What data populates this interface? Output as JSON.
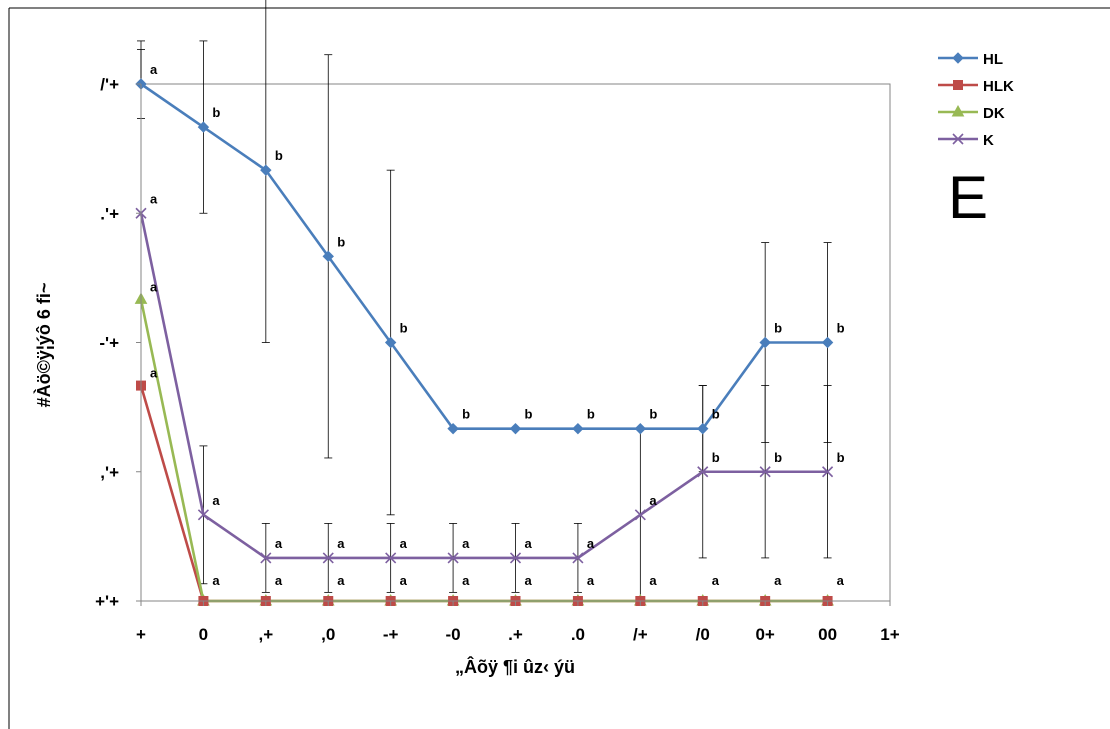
{
  "panel_letter": "E",
  "chart_data": {
    "type": "line",
    "xlabel": "„Âõÿ ¶i ûz‹ ýü",
    "ylabel": "#Àö©ÿ¦ýô 6 fi~",
    "x": [
      0,
      5,
      10,
      15,
      20,
      25,
      30,
      35,
      40,
      45,
      50,
      55
    ],
    "x_tick_labels": [
      "+",
      "0",
      ",+",
      ",0",
      "-+",
      "-0",
      ".+",
      ".0",
      "/+",
      "/0",
      "0+",
      "00",
      "1+"
    ],
    "y_tick_labels": [
      "+'+",
      ",'+",
      "-'+",
      ".'+",
      "/'+"
    ],
    "xlim": [
      0,
      60
    ],
    "ylim": [
      0,
      3
    ],
    "grid": false,
    "legend": "top-right",
    "series": [
      {
        "name": "HL",
        "color": "#4a7ebb",
        "marker": "diamond",
        "values": [
          3.0,
          2.75,
          2.5,
          2.0,
          1.5,
          1.0,
          1.0,
          1.0,
          1.0,
          1.0,
          1.5,
          1.5
        ],
        "errors": [
          0.2,
          0.5,
          1.0,
          1.17,
          1.0,
          0,
          0,
          0,
          0,
          0.25,
          0.58,
          0.58
        ],
        "labels": [
          "a",
          "b",
          "b",
          "b",
          "b",
          "b",
          "b",
          "b",
          "b",
          "b",
          "b",
          "b"
        ]
      },
      {
        "name": "HLK",
        "color": "#be4b48",
        "marker": "square",
        "values": [
          1.25,
          0,
          0,
          0,
          0,
          0,
          0,
          0,
          0,
          0,
          0,
          0
        ],
        "errors": [
          0,
          0,
          0,
          0,
          0,
          0,
          0,
          0,
          0,
          0,
          0,
          0
        ],
        "labels": [
          "a",
          "a",
          "a",
          "a",
          "a",
          "a",
          "a",
          "a",
          "a",
          "a",
          "a",
          "a"
        ]
      },
      {
        "name": "DK",
        "color": "#98b954",
        "marker": "triangle",
        "values": [
          1.75,
          0,
          0,
          0,
          0,
          0,
          0,
          0,
          0,
          0,
          0,
          0
        ],
        "errors": [
          0,
          0,
          0,
          0,
          0,
          0,
          0,
          0,
          0,
          0,
          0,
          0
        ],
        "labels": [
          "a",
          "a",
          "a",
          "a",
          "a",
          "a",
          "a",
          "a",
          "a",
          "a",
          "a",
          "a"
        ]
      },
      {
        "name": "K",
        "color": "#7d60a0",
        "marker": "x",
        "values": [
          2.25,
          0.5,
          0.25,
          0.25,
          0.25,
          0.25,
          0.25,
          0.25,
          0.5,
          0.75,
          0.75,
          0.75
        ],
        "errors": [
          1.0,
          0.4,
          0.2,
          0.2,
          0.2,
          0.2,
          0.2,
          0.2,
          0.5,
          0.5,
          0.5,
          0.5
        ],
        "labels": [
          "a",
          "a",
          "a",
          "a",
          "a",
          "a",
          "a",
          "a",
          "a",
          "b",
          "b",
          "b"
        ]
      }
    ]
  }
}
